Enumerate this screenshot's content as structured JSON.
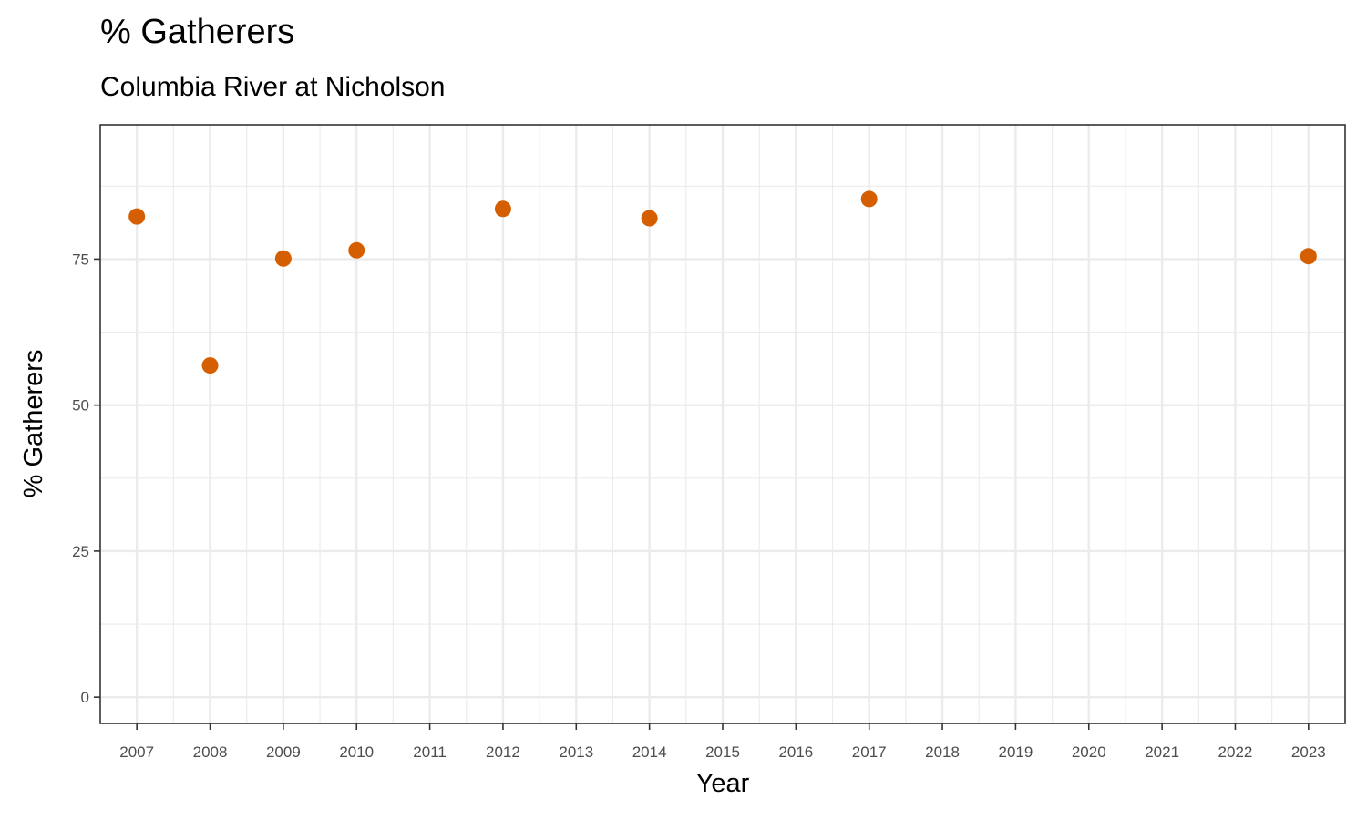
{
  "chart_data": {
    "type": "scatter",
    "title": "% Gatherers",
    "subtitle": "Columbia River at Nicholson",
    "xlabel": "Year",
    "ylabel": "% Gatherers",
    "x_ticks": [
      2007,
      2008,
      2009,
      2010,
      2011,
      2012,
      2013,
      2014,
      2015,
      2016,
      2017,
      2018,
      2019,
      2020,
      2021,
      2022,
      2023
    ],
    "y_ticks": [
      0,
      25,
      50,
      75
    ],
    "xlim": [
      2006.5,
      2023.5
    ],
    "ylim": [
      -4.5,
      98
    ],
    "grid": true,
    "point_color": "#D55E00",
    "points": [
      {
        "x": 2007,
        "y": 82.3
      },
      {
        "x": 2008,
        "y": 56.8
      },
      {
        "x": 2009,
        "y": 75.1
      },
      {
        "x": 2010,
        "y": 76.5
      },
      {
        "x": 2012,
        "y": 83.6
      },
      {
        "x": 2014,
        "y": 82.0
      },
      {
        "x": 2017,
        "y": 85.3
      },
      {
        "x": 2023,
        "y": 75.5
      }
    ]
  }
}
